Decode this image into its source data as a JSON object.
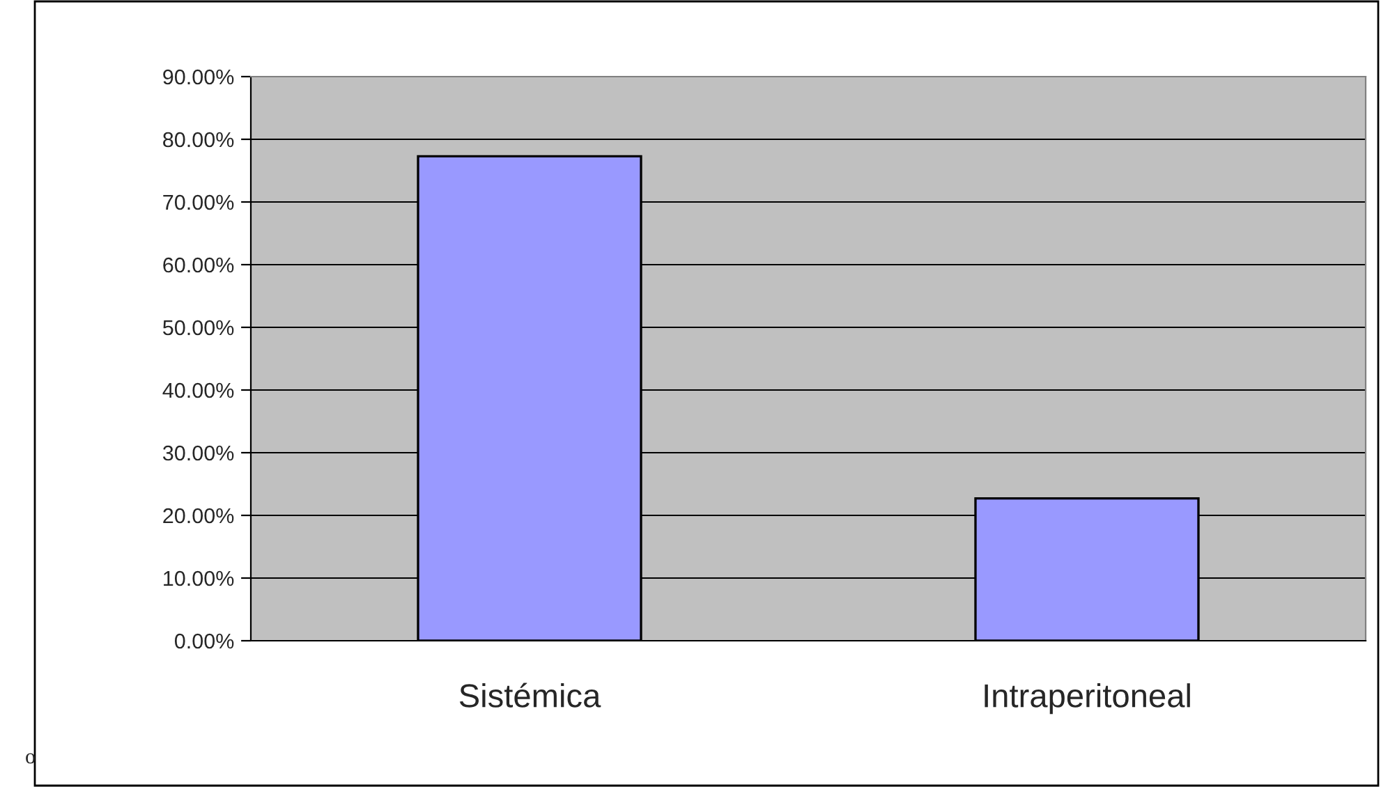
{
  "chart_data": {
    "type": "bar",
    "categories": [
      "Sistémica",
      "Intraperitoneal"
    ],
    "values": [
      77.3,
      22.7
    ],
    "color": "#9999ff",
    "ylim": [
      0,
      90
    ],
    "yticks": [
      {
        "value": 0,
        "label": "0.00%"
      },
      {
        "value": 10,
        "label": "10.00%"
      },
      {
        "value": 20,
        "label": "20.00%"
      },
      {
        "value": 30,
        "label": "30.00%"
      },
      {
        "value": 40,
        "label": "40.00%"
      },
      {
        "value": 50,
        "label": "50.00%"
      },
      {
        "value": 60,
        "label": "60.00%"
      },
      {
        "value": 70,
        "label": "70.00%"
      },
      {
        "value": 80,
        "label": "80.00%"
      },
      {
        "value": 90,
        "label": "90.00%"
      }
    ],
    "grid": "y",
    "annotations": [
      "o"
    ]
  }
}
